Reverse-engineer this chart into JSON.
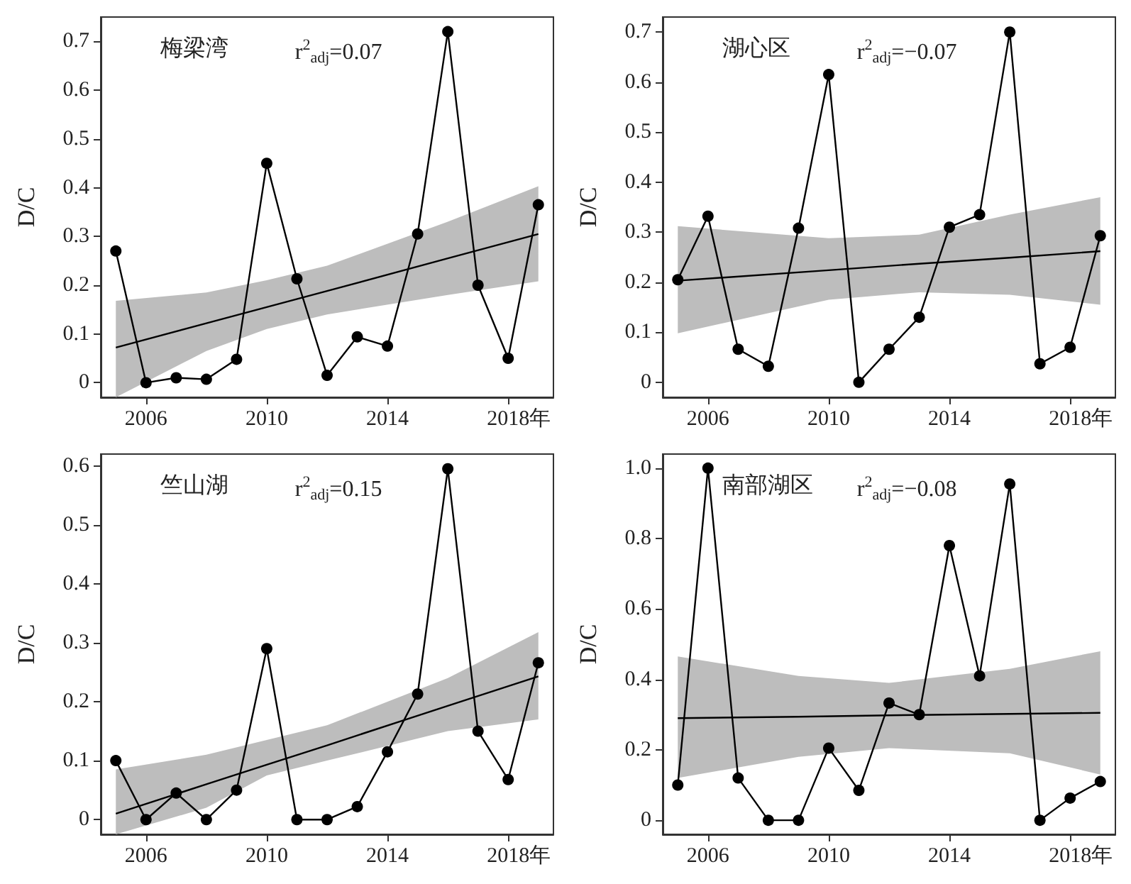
{
  "chart_data": [
    {
      "type": "line",
      "ylabel": "D/C",
      "xlabel": "年",
      "annotations": [
        "梅梁湾",
        "r$^{2}$$_{adj}$=0.07"
      ],
      "x": [
        2005,
        2006,
        2007,
        2008,
        2009,
        2010,
        2011,
        2012,
        2013,
        2014,
        2015,
        2016,
        2017,
        2018,
        2019
      ],
      "xlim": [
        2004.5,
        2019.5
      ],
      "xticks": [
        2006,
        2010,
        2014,
        2018
      ],
      "ylim": [
        -0.03,
        0.75
      ],
      "yticks": [
        0,
        0.1,
        0.2,
        0.3,
        0.4,
        0.5,
        0.6,
        0.7
      ],
      "marker": "circle",
      "series": [
        {
          "color": "#000000",
          "values": [
            0.27,
            0,
            0.01,
            0.007,
            0.048,
            0.45,
            0.213,
            0.015,
            0.094,
            0.075,
            0.305,
            0.72,
            0.2,
            0.05,
            0.365
          ]
        },
        {
          "color": "#000000",
          "marker": "none",
          "x": [
            2005,
            2008,
            2010,
            2012,
            2016,
            2019
          ],
          "values": [
            0.072,
            0.122,
            0.155,
            0.188,
            0.255,
            0.305
          ],
          "lower": [
            -0.03,
            0.065,
            0.11,
            0.14,
            0.18,
            0.208
          ],
          "upper": [
            0.168,
            0.185,
            0.21,
            0.24,
            0.33,
            0.403
          ]
        }
      ]
    },
    {
      "type": "line",
      "ylabel": "D/C",
      "xlabel": "年",
      "annotations": [
        "湖心区",
        "r$^{2}$$_{adj}$=−0.07"
      ],
      "x": [
        2005,
        2006,
        2007,
        2008,
        2009,
        2010,
        2011,
        2012,
        2013,
        2014,
        2015,
        2016,
        2017,
        2018,
        2019
      ],
      "xlim": [
        2004.5,
        2019.5
      ],
      "xticks": [
        2006,
        2010,
        2014,
        2018
      ],
      "ylim": [
        -0.03,
        0.73
      ],
      "yticks": [
        0,
        0.1,
        0.2,
        0.3,
        0.4,
        0.5,
        0.6,
        0.7
      ],
      "marker": "circle",
      "series": [
        {
          "color": "#000000",
          "values": [
            0.205,
            0.332,
            0.066,
            0.032,
            0.308,
            0.615,
            0,
            0.066,
            0.13,
            0.31,
            0.335,
            0.7,
            0.037,
            0.07,
            0.293
          ]
        },
        {
          "color": "#000000",
          "marker": "none",
          "x": [
            2005,
            2010,
            2013,
            2016,
            2019
          ],
          "values": [
            0.203,
            0.224,
            0.237,
            0.249,
            0.262
          ],
          "lower": [
            0.098,
            0.165,
            0.18,
            0.175,
            0.155
          ],
          "upper": [
            0.312,
            0.288,
            0.295,
            0.335,
            0.37
          ]
        }
      ]
    },
    {
      "type": "line",
      "ylabel": "D/C",
      "xlabel": "年",
      "annotations": [
        "竺山湖",
        "r$^{2}$$_{adj}$=0.15"
      ],
      "x": [
        2005,
        2006,
        2007,
        2008,
        2009,
        2010,
        2011,
        2012,
        2013,
        2014,
        2015,
        2016,
        2017,
        2018,
        2019
      ],
      "xlim": [
        2004.5,
        2019.5
      ],
      "xticks": [
        2006,
        2010,
        2014,
        2018
      ],
      "ylim": [
        -0.025,
        0.62
      ],
      "yticks": [
        0,
        0.1,
        0.2,
        0.3,
        0.4,
        0.5,
        0.6
      ],
      "marker": "circle",
      "series": [
        {
          "color": "#000000",
          "values": [
            0.1,
            0,
            0.045,
            0,
            0.05,
            0.29,
            0,
            0,
            0.022,
            0.115,
            0.213,
            0.595,
            0.15,
            0.068,
            0.266
          ]
        },
        {
          "color": "#000000",
          "marker": "none",
          "x": [
            2005,
            2008,
            2010,
            2012,
            2016,
            2019
          ],
          "values": [
            0.01,
            0.06,
            0.093,
            0.126,
            0.193,
            0.243
          ],
          "lower": [
            -0.025,
            0.02,
            0.075,
            0.1,
            0.15,
            0.17
          ],
          "upper": [
            0.085,
            0.11,
            0.135,
            0.16,
            0.24,
            0.318
          ]
        }
      ]
    },
    {
      "type": "line",
      "ylabel": "D/C",
      "xlabel": "年",
      "annotations": [
        "南部湖区",
        "r$^{2}$$_{adj}$=−0.08"
      ],
      "x": [
        2005,
        2006,
        2007,
        2008,
        2009,
        2010,
        2011,
        2012,
        2013,
        2014,
        2015,
        2016,
        2017,
        2018,
        2019
      ],
      "xlim": [
        2004.5,
        2019.5
      ],
      "xticks": [
        2006,
        2010,
        2014,
        2018
      ],
      "ylim": [
        -0.04,
        1.04
      ],
      "yticks": [
        0,
        0.2,
        0.4,
        0.6,
        0.8,
        {
          "value": 1,
          "label": "1.0"
        }
      ],
      "marker": "circle",
      "series": [
        {
          "color": "#000000",
          "values": [
            0.1,
            1.0,
            0.12,
            0,
            0,
            0.205,
            0.085,
            0.333,
            0.3,
            0.78,
            0.41,
            0.955,
            0,
            0.063,
            0.11
          ]
        },
        {
          "color": "#000000",
          "marker": "none",
          "x": [
            2005,
            2009,
            2012,
            2016,
            2019
          ],
          "values": [
            0.29,
            0.294,
            0.298,
            0.302,
            0.305
          ],
          "lower": [
            0.12,
            0.18,
            0.205,
            0.19,
            0.13
          ],
          "upper": [
            0.465,
            0.41,
            0.39,
            0.43,
            0.48
          ]
        }
      ]
    }
  ]
}
